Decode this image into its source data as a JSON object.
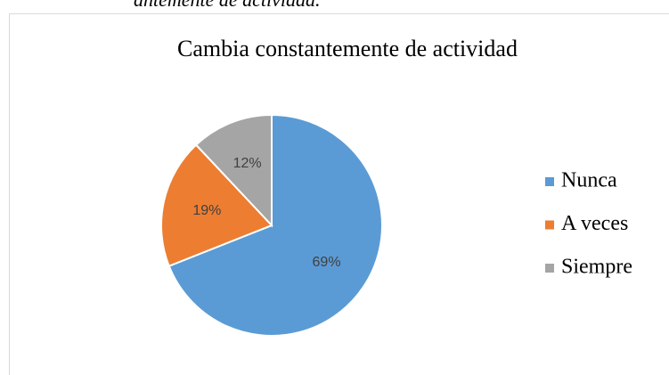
{
  "caption": "antemente de actividad.",
  "chart_data": {
    "type": "pie",
    "title": "Cambia constantemente de actividad",
    "categories": [
      "Nunca",
      "A veces",
      "Siempre"
    ],
    "values": [
      69,
      19,
      12
    ],
    "value_labels": [
      "69%",
      "19%",
      "12%"
    ],
    "colors": [
      "#5b9bd5",
      "#ed7d31",
      "#a5a5a5"
    ],
    "legend": "right"
  }
}
